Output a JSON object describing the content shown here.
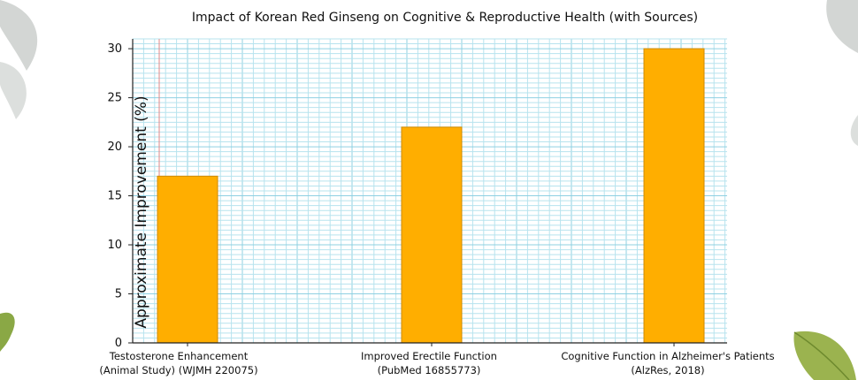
{
  "colors": {
    "bar": "#ffae00",
    "bar_edge": "#d08a00",
    "grid_minor": "#b7e3ee",
    "grid_major": "#8fd0e2",
    "axis": "#222222",
    "leaf": "#cfd2d0",
    "leaf_green": "#8aa845"
  },
  "decorations": {
    "leaf_icons": [
      "leaf-icon-top-left",
      "leaf-icon-top-right",
      "leaf-icon-bottom-left",
      "leaf-icon-bottom-right"
    ]
  },
  "chart_data": {
    "type": "bar",
    "title": "Impact of Korean Red Ginseng on Cognitive & Reproductive Health (with Sources)",
    "xlabel": "",
    "ylabel": "Approximate Improvement (%)",
    "categories": [
      [
        "Testosterone Enhancement",
        "(Animal Study) (WJMH 220075)"
      ],
      [
        "Improved Erectile Function",
        "(PubMed 16855773)"
      ],
      [
        "Cognitive Function in Alzheimer's Patients",
        "(AlzRes, 2018)"
      ]
    ],
    "values": [
      17,
      22,
      30
    ],
    "ylim": [
      0,
      31
    ],
    "yticks": [
      0,
      5,
      10,
      15,
      20,
      25,
      30
    ],
    "grid": true,
    "legend": "none"
  }
}
